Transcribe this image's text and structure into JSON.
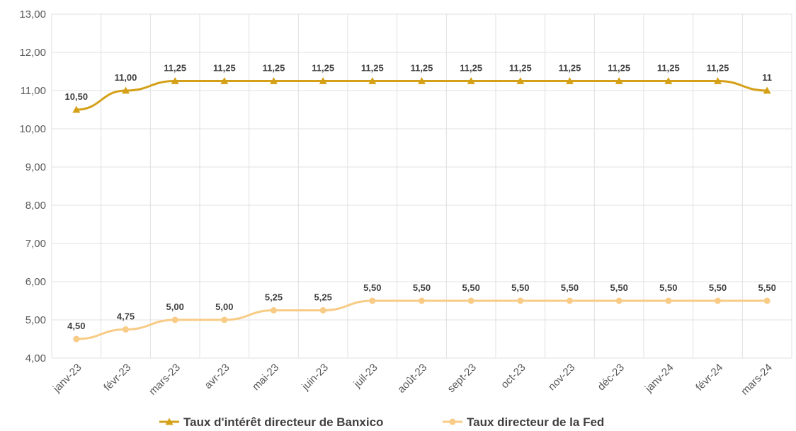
{
  "chart_data": {
    "type": "line",
    "categories": [
      "janv-23",
      "févr-23",
      "mars-23",
      "avr-23",
      "mai-23",
      "juin-23",
      "juil-23",
      "août-23",
      "sept-23",
      "oct-23",
      "nov-23",
      "déc-23",
      "janv-24",
      "févr-24",
      "mars-24"
    ],
    "series": [
      {
        "name": "Taux d'intérêt directeur de Banxico",
        "color": "#D4A017",
        "marker": "triangle",
        "values": [
          10.5,
          11.0,
          11.25,
          11.25,
          11.25,
          11.25,
          11.25,
          11.25,
          11.25,
          11.25,
          11.25,
          11.25,
          11.25,
          11.25,
          11.0
        ],
        "labels": [
          "10,50",
          "11,00",
          "11,25",
          "11,25",
          "11,25",
          "11,25",
          "11,25",
          "11,25",
          "11,25",
          "11,25",
          "11,25",
          "11,25",
          "11,25",
          "11,25",
          "11"
        ]
      },
      {
        "name": "Taux directeur de la Fed",
        "color": "#F8CB86",
        "marker": "circle",
        "values": [
          4.5,
          4.75,
          5.0,
          5.0,
          5.25,
          5.25,
          5.5,
          5.5,
          5.5,
          5.5,
          5.5,
          5.5,
          5.5,
          5.5,
          5.5
        ],
        "labels": [
          "4,50",
          "4,75",
          "5,00",
          "5,00",
          "5,25",
          "5,25",
          "5,50",
          "5,50",
          "5,50",
          "5,50",
          "5,50",
          "5,50",
          "5,50",
          "5,50",
          "5,50"
        ]
      }
    ],
    "ylim": [
      4,
      13
    ],
    "yticks": [
      "4,00",
      "5,00",
      "6,00",
      "7,00",
      "8,00",
      "9,00",
      "10,00",
      "11,00",
      "12,00",
      "13,00"
    ],
    "grid": true,
    "legend": "bottom"
  }
}
